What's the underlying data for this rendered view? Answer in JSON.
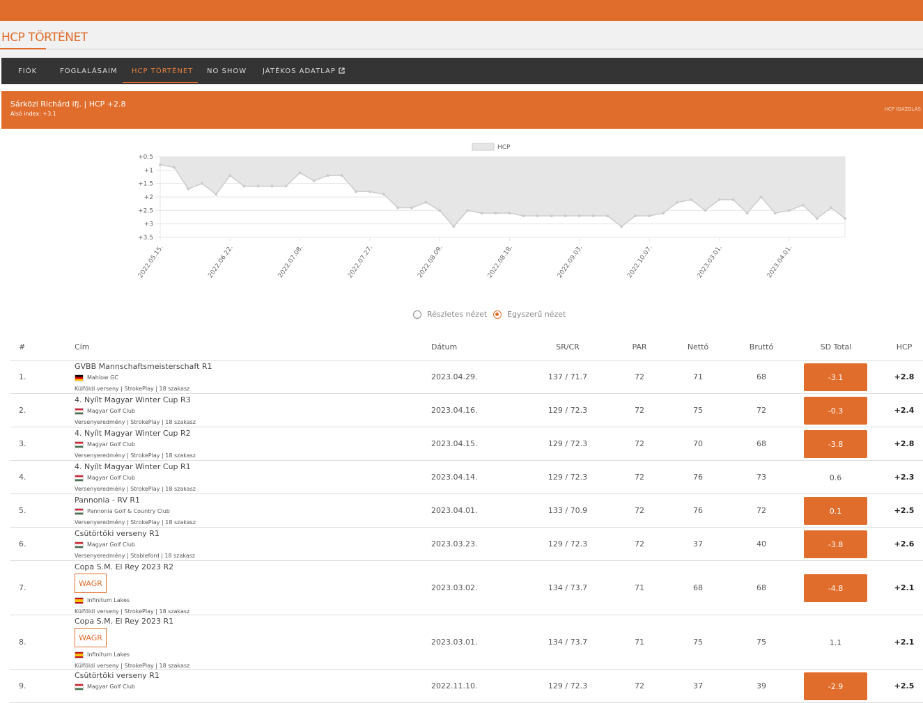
{
  "header": {
    "title": "HCP TÖRTÉNET"
  },
  "nav": [
    "FIÓK",
    "FOGLALÁSAIM",
    "HCP TÖRTÉNET",
    "NO SHOW",
    "JÁTÉKOS ADATLAP"
  ],
  "nav_active": 2,
  "player": {
    "name": "Sárközi Richárd ifj. | HCP +2.8",
    "low_index": "Alsó index: +3.1",
    "action": "HCP IGAZOLÁS"
  },
  "chart_data": {
    "type": "line",
    "categories": [
      "2022.05.15.",
      null,
      null,
      null,
      null,
      "2022.06.22.",
      null,
      null,
      null,
      null,
      "2022.07.08.",
      null,
      null,
      null,
      null,
      "2022.07.27.",
      null,
      null,
      null,
      null,
      "2022.08.09.",
      null,
      null,
      null,
      null,
      "2022.08.18.",
      null,
      null,
      null,
      null,
      "2022.09.03.",
      null,
      null,
      null,
      null,
      "2022.10.07.",
      null,
      null,
      null,
      null,
      "2023.03.01.",
      null,
      null,
      null,
      null,
      "2023.04.01.",
      null,
      null,
      null,
      null
    ],
    "series": [
      {
        "name": "HCP",
        "color": "#cccccc",
        "fill": "#e6e6e6",
        "values": [
          0.8,
          0.9,
          1.7,
          1.5,
          1.9,
          1.2,
          1.6,
          1.6,
          1.6,
          1.6,
          1.1,
          1.4,
          1.2,
          1.2,
          1.8,
          1.8,
          1.9,
          2.4,
          2.4,
          2.2,
          2.5,
          3.1,
          2.5,
          2.6,
          2.6,
          2.6,
          2.7,
          2.7,
          2.7,
          2.7,
          2.7,
          2.7,
          2.7,
          3.1,
          2.7,
          2.7,
          2.6,
          2.2,
          2.1,
          2.5,
          2.1,
          2.1,
          2.6,
          2.0,
          2.6,
          2.5,
          2.3,
          2.8,
          2.4,
          2.8
        ]
      }
    ],
    "ylim": [
      3.5,
      0.5
    ],
    "yticks": [
      {
        "value": 0.5,
        "label": "+0.5"
      },
      {
        "value": 1,
        "label": "+1"
      },
      {
        "value": 1.5,
        "label": "+1.5"
      },
      {
        "value": 2,
        "label": "+2"
      },
      {
        "value": 2.5,
        "label": "+2.5"
      },
      {
        "value": 3,
        "label": "+3"
      },
      {
        "value": 3.5,
        "label": "+3.5"
      }
    ],
    "grid": true,
    "legend": "top"
  },
  "view_options": [
    "Részletes nézet",
    "Egyszerű nézet"
  ],
  "selected_view": 1,
  "table": {
    "columns": [
      "#",
      "Cím",
      "Dátum",
      "SR/CR",
      "PAR",
      "Nettó",
      "Bruttó",
      "SD Total",
      "HCP"
    ],
    "rows": [
      {
        "index": "1.",
        "title": "GVBB Mannschaftsmeisterschaft R1",
        "club": "Mahlow GC",
        "meta": "Külföldi verseny | StrokePlay | 18 szakasz",
        "date": "2023.04.29.",
        "srcr": "137 / 71.7",
        "par": "72",
        "netto": "71",
        "brutto": "68",
        "sd": "-3.1",
        "highlighted": true,
        "hcp": "+2.8"
      },
      {
        "index": "2.",
        "title": "4. Nyílt Magyar Winter Cup R3",
        "club": "Magyar Golf Club",
        "meta": "Versenyeredmény | StrokePlay | 18 szakasz",
        "date": "2023.04.16.",
        "srcr": "129 / 72.3",
        "par": "72",
        "netto": "75",
        "brutto": "72",
        "sd": "-0.3",
        "highlighted": true,
        "hcp": "+2.4"
      },
      {
        "index": "3.",
        "title": "4. Nyílt Magyar Winter Cup R2",
        "club": "Magyar Golf Club",
        "meta": "Versenyeredmény | StrokePlay | 18 szakasz",
        "date": "2023.04.15.",
        "srcr": "129 / 72.3",
        "par": "72",
        "netto": "70",
        "brutto": "68",
        "sd": "-3.8",
        "highlighted": true,
        "hcp": "+2.8"
      },
      {
        "index": "4.",
        "title": "4. Nyílt Magyar Winter Cup R1",
        "club": "Magyar Golf Club",
        "meta": "Versenyeredmény | StrokePlay | 18 szakasz",
        "date": "2023.04.14.",
        "srcr": "129 / 72.3",
        "par": "72",
        "netto": "76",
        "brutto": "73",
        "sd": "0.6",
        "highlighted": false,
        "hcp": "+2.3"
      },
      {
        "index": "5.",
        "title": "Pannonia - RV R1",
        "club": "Pannonia Golf & Country Club",
        "meta": "Versenyeredmény | StrokePlay | 18 szakasz",
        "date": "2023.04.01.",
        "srcr": "133 / 70.9",
        "par": "72",
        "netto": "76",
        "brutto": "72",
        "sd": "0.1",
        "highlighted": true,
        "hcp": "+2.5"
      },
      {
        "index": "6.",
        "title": "Csütörtöki verseny R1",
        "club": "Magyar Golf Club",
        "meta": "Versenyeredmény | Stableford | 18 szakasz",
        "date": "2023.03.23.",
        "srcr": "129 / 72.3",
        "par": "72",
        "netto": "37",
        "brutto": "40",
        "sd": "-3.8",
        "highlighted": true,
        "hcp": "+2.6"
      },
      {
        "index": "7.",
        "title": "Copa S.M. El Rey 2023 R2",
        "badge": "WAGR",
        "club": "Infinitum Lakes",
        "meta": "Külföldi verseny | StrokePlay | 18 szakasz",
        "date": "2023.03.02.",
        "srcr": "134 / 73.7",
        "par": "71",
        "netto": "68",
        "brutto": "68",
        "sd": "-4.8",
        "highlighted": true,
        "hcp": "+2.1"
      },
      {
        "index": "8.",
        "title": "Copa S.M. El Rey 2023 R1",
        "badge": "WAGR",
        "club": "Infinitum Lakes",
        "meta": "Külföldi verseny | StrokePlay | 18 szakasz",
        "date": "2023.03.01.",
        "srcr": "134 / 73.7",
        "par": "71",
        "netto": "75",
        "brutto": "75",
        "sd": "1.1",
        "highlighted": false,
        "hcp": "+2.1"
      },
      {
        "index": "9.",
        "title": "Csütörtöki verseny R1",
        "club": "Magyar Golf Club",
        "date": "2022.11.10.",
        "srcr": "129 / 72.3",
        "par": "72",
        "netto": "37",
        "brutto": "39",
        "sd": "-2.9",
        "highlighted": true,
        "hcp": "+2.5"
      }
    ]
  }
}
